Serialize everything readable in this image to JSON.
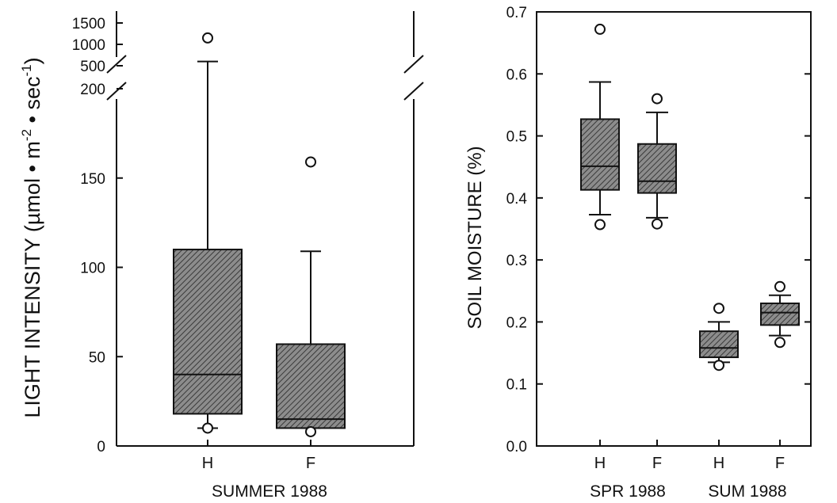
{
  "chart_data": [
    {
      "type": "box",
      "ylabel": "LIGHT INTENSITY (µmol • m",
      "ylabel_sup1": "-2",
      "ylabel_mid": " • sec",
      "ylabel_sup2": "-1",
      "ylabel_end": ")",
      "xlabel": "SUMMER 1988",
      "categories": [
        "H",
        "F"
      ],
      "y_ticks_lower": [
        "0",
        "50",
        "100",
        "150"
      ],
      "y_ticks_upper": [
        "200",
        "500",
        "1000",
        "1500"
      ],
      "ylim_lower": [
        0,
        200
      ],
      "ylim_upper": [
        200,
        1500
      ],
      "axis_break": true,
      "boxes": [
        {
          "category": "H",
          "whisker_low": 10,
          "q1": 18,
          "median": 40,
          "q3": 110,
          "whisker_high": 600,
          "outliers": [
            10,
            1150
          ]
        },
        {
          "category": "F",
          "whisker_low": 10,
          "q1": 10,
          "median": 15,
          "q3": 57,
          "whisker_high": 109,
          "outliers": [
            8,
            159
          ]
        }
      ]
    },
    {
      "type": "box",
      "ylabel": "SOIL MOISTURE (%)",
      "y_ticks": [
        "0.0",
        "0.1",
        "0.2",
        "0.3",
        "0.4",
        "0.5",
        "0.6",
        "0.7"
      ],
      "ylim": [
        0,
        0.7
      ],
      "categories": [
        "H",
        "F",
        "H",
        "F"
      ],
      "groups": [
        "SPR 1988",
        "SUM 1988"
      ],
      "boxes": [
        {
          "group": "SPR 1988",
          "category": "H",
          "whisker_low": 0.373,
          "q1": 0.413,
          "median": 0.451,
          "q3": 0.527,
          "whisker_high": 0.587,
          "outliers": [
            0.357,
            0.672
          ]
        },
        {
          "group": "SPR 1988",
          "category": "F",
          "whisker_low": 0.368,
          "q1": 0.408,
          "median": 0.427,
          "q3": 0.487,
          "whisker_high": 0.538,
          "outliers": [
            0.358,
            0.56
          ]
        },
        {
          "group": "SUM 1988",
          "category": "H",
          "whisker_low": 0.135,
          "q1": 0.143,
          "median": 0.158,
          "q3": 0.185,
          "whisker_high": 0.2,
          "outliers": [
            0.13,
            0.222
          ]
        },
        {
          "group": "SUM 1988",
          "category": "F",
          "whisker_low": 0.178,
          "q1": 0.195,
          "median": 0.215,
          "q3": 0.23,
          "whisker_high": 0.243,
          "outliers": [
            0.167,
            0.257
          ]
        }
      ]
    }
  ]
}
